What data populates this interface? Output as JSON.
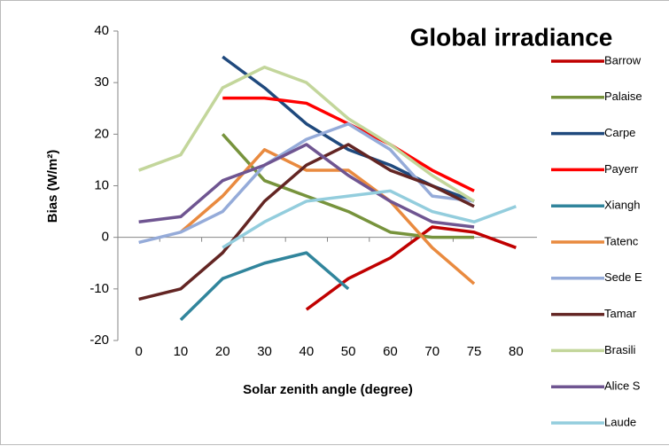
{
  "chart_data": {
    "type": "line",
    "title": "Global irradiance",
    "x_label": "Solar zenith angle (degree)",
    "y_label": "Bias (W/m²)",
    "categories": [
      0,
      10,
      20,
      30,
      40,
      50,
      60,
      70,
      75,
      80
    ],
    "ylim": [
      -20,
      40
    ],
    "yticks": [
      -20,
      -10,
      0,
      10,
      20,
      30,
      40
    ],
    "series": [
      {
        "name": "Barrow",
        "color": "#c00000",
        "values": [
          null,
          null,
          null,
          null,
          -14,
          -8,
          -4,
          2,
          1,
          -2
        ]
      },
      {
        "name": "Palaise",
        "color": "#77933c",
        "values": [
          null,
          null,
          20,
          11,
          8,
          5,
          1,
          0,
          0,
          null
        ]
      },
      {
        "name": "Carpe",
        "color": "#1f497d",
        "values": [
          null,
          null,
          35,
          29,
          22,
          17,
          14,
          10,
          7,
          null
        ]
      },
      {
        "name": "Payerr",
        "color": "#ff0000",
        "values": [
          null,
          null,
          27,
          27,
          26,
          22,
          18,
          13,
          9,
          null
        ]
      },
      {
        "name": "Xiangh",
        "color": "#31859c",
        "values": [
          null,
          -16,
          -8,
          -5,
          -3,
          -10,
          null,
          null,
          null,
          null
        ]
      },
      {
        "name": "Tatenc",
        "color": "#e98a3f",
        "values": [
          null,
          1,
          8,
          17,
          13,
          13,
          7,
          -2,
          -9,
          null
        ]
      },
      {
        "name": "Sede E",
        "color": "#95abd9",
        "values": [
          -1,
          1,
          5,
          14,
          19,
          22,
          17,
          8,
          7,
          null
        ]
      },
      {
        "name": "Tamar",
        "color": "#632523",
        "values": [
          -12,
          -10,
          -3,
          7,
          14,
          18,
          13,
          10,
          6,
          null
        ]
      },
      {
        "name": "Brasili",
        "color": "#c3d69b",
        "values": [
          13,
          16,
          29,
          33,
          30,
          23,
          18,
          12,
          7,
          null
        ]
      },
      {
        "name": "Alice S",
        "color": "#6f5591",
        "values": [
          3,
          4,
          11,
          14,
          18,
          12,
          7,
          3,
          2,
          null
        ]
      },
      {
        "name": "Laude",
        "color": "#93cddd",
        "values": [
          null,
          null,
          -2,
          3,
          7,
          8,
          9,
          5,
          3,
          6
        ]
      }
    ]
  }
}
